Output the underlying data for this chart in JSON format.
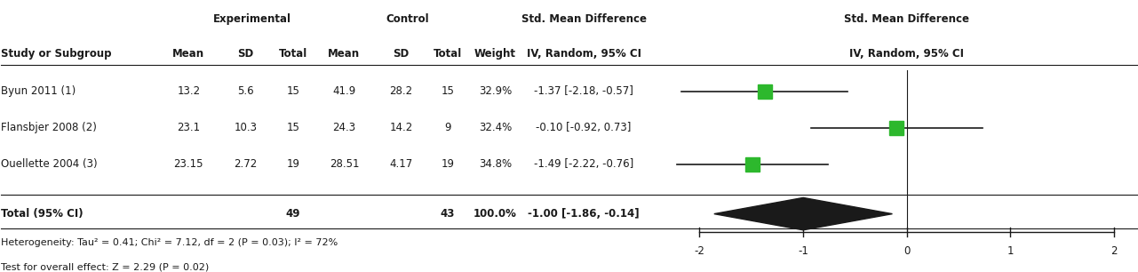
{
  "studies": [
    {
      "name": "Byun 2011 (1)",
      "exp_mean": 13.2,
      "exp_sd": 5.6,
      "exp_n": 15,
      "ctrl_mean": 41.9,
      "ctrl_sd": 28.2,
      "ctrl_n": 15,
      "weight": "32.9%",
      "smd": -1.37,
      "ci_lo": -2.18,
      "ci_hi": -0.57
    },
    {
      "name": "Flansbjer 2008 (2)",
      "exp_mean": 23.1,
      "exp_sd": 10.3,
      "exp_n": 15,
      "ctrl_mean": 24.3,
      "ctrl_sd": 14.2,
      "ctrl_n": 9,
      "weight": "32.4%",
      "smd": -0.1,
      "ci_lo": -0.92,
      "ci_hi": 0.73
    },
    {
      "name": "Ouellette 2004 (3)",
      "exp_mean": 23.15,
      "exp_sd": 2.72,
      "exp_n": 19,
      "ctrl_mean": 28.51,
      "ctrl_sd": 4.17,
      "ctrl_n": 19,
      "weight": "34.8%",
      "smd": -1.49,
      "ci_lo": -2.22,
      "ci_hi": -0.76
    }
  ],
  "total": {
    "exp_n": 49,
    "ctrl_n": 43,
    "weight": "100.0%",
    "smd": -1.0,
    "ci_lo": -1.86,
    "ci_hi": -0.14
  },
  "heterogeneity": "Heterogeneity: Tau² = 0.41; Chi² = 7.12, df = 2 (P = 0.03); I² = 72%",
  "overall_effect": "Test for overall effect: Z = 2.29 (P = 0.02)",
  "axis_min": -2,
  "axis_max": 2,
  "axis_ticks": [
    -2,
    -1,
    0,
    1,
    2
  ],
  "square_color": "#2db82d",
  "diamond_color": "#1a1a1a",
  "line_color": "#1a1a1a",
  "text_color": "#1a1a1a",
  "bg_color": "#ffffff"
}
